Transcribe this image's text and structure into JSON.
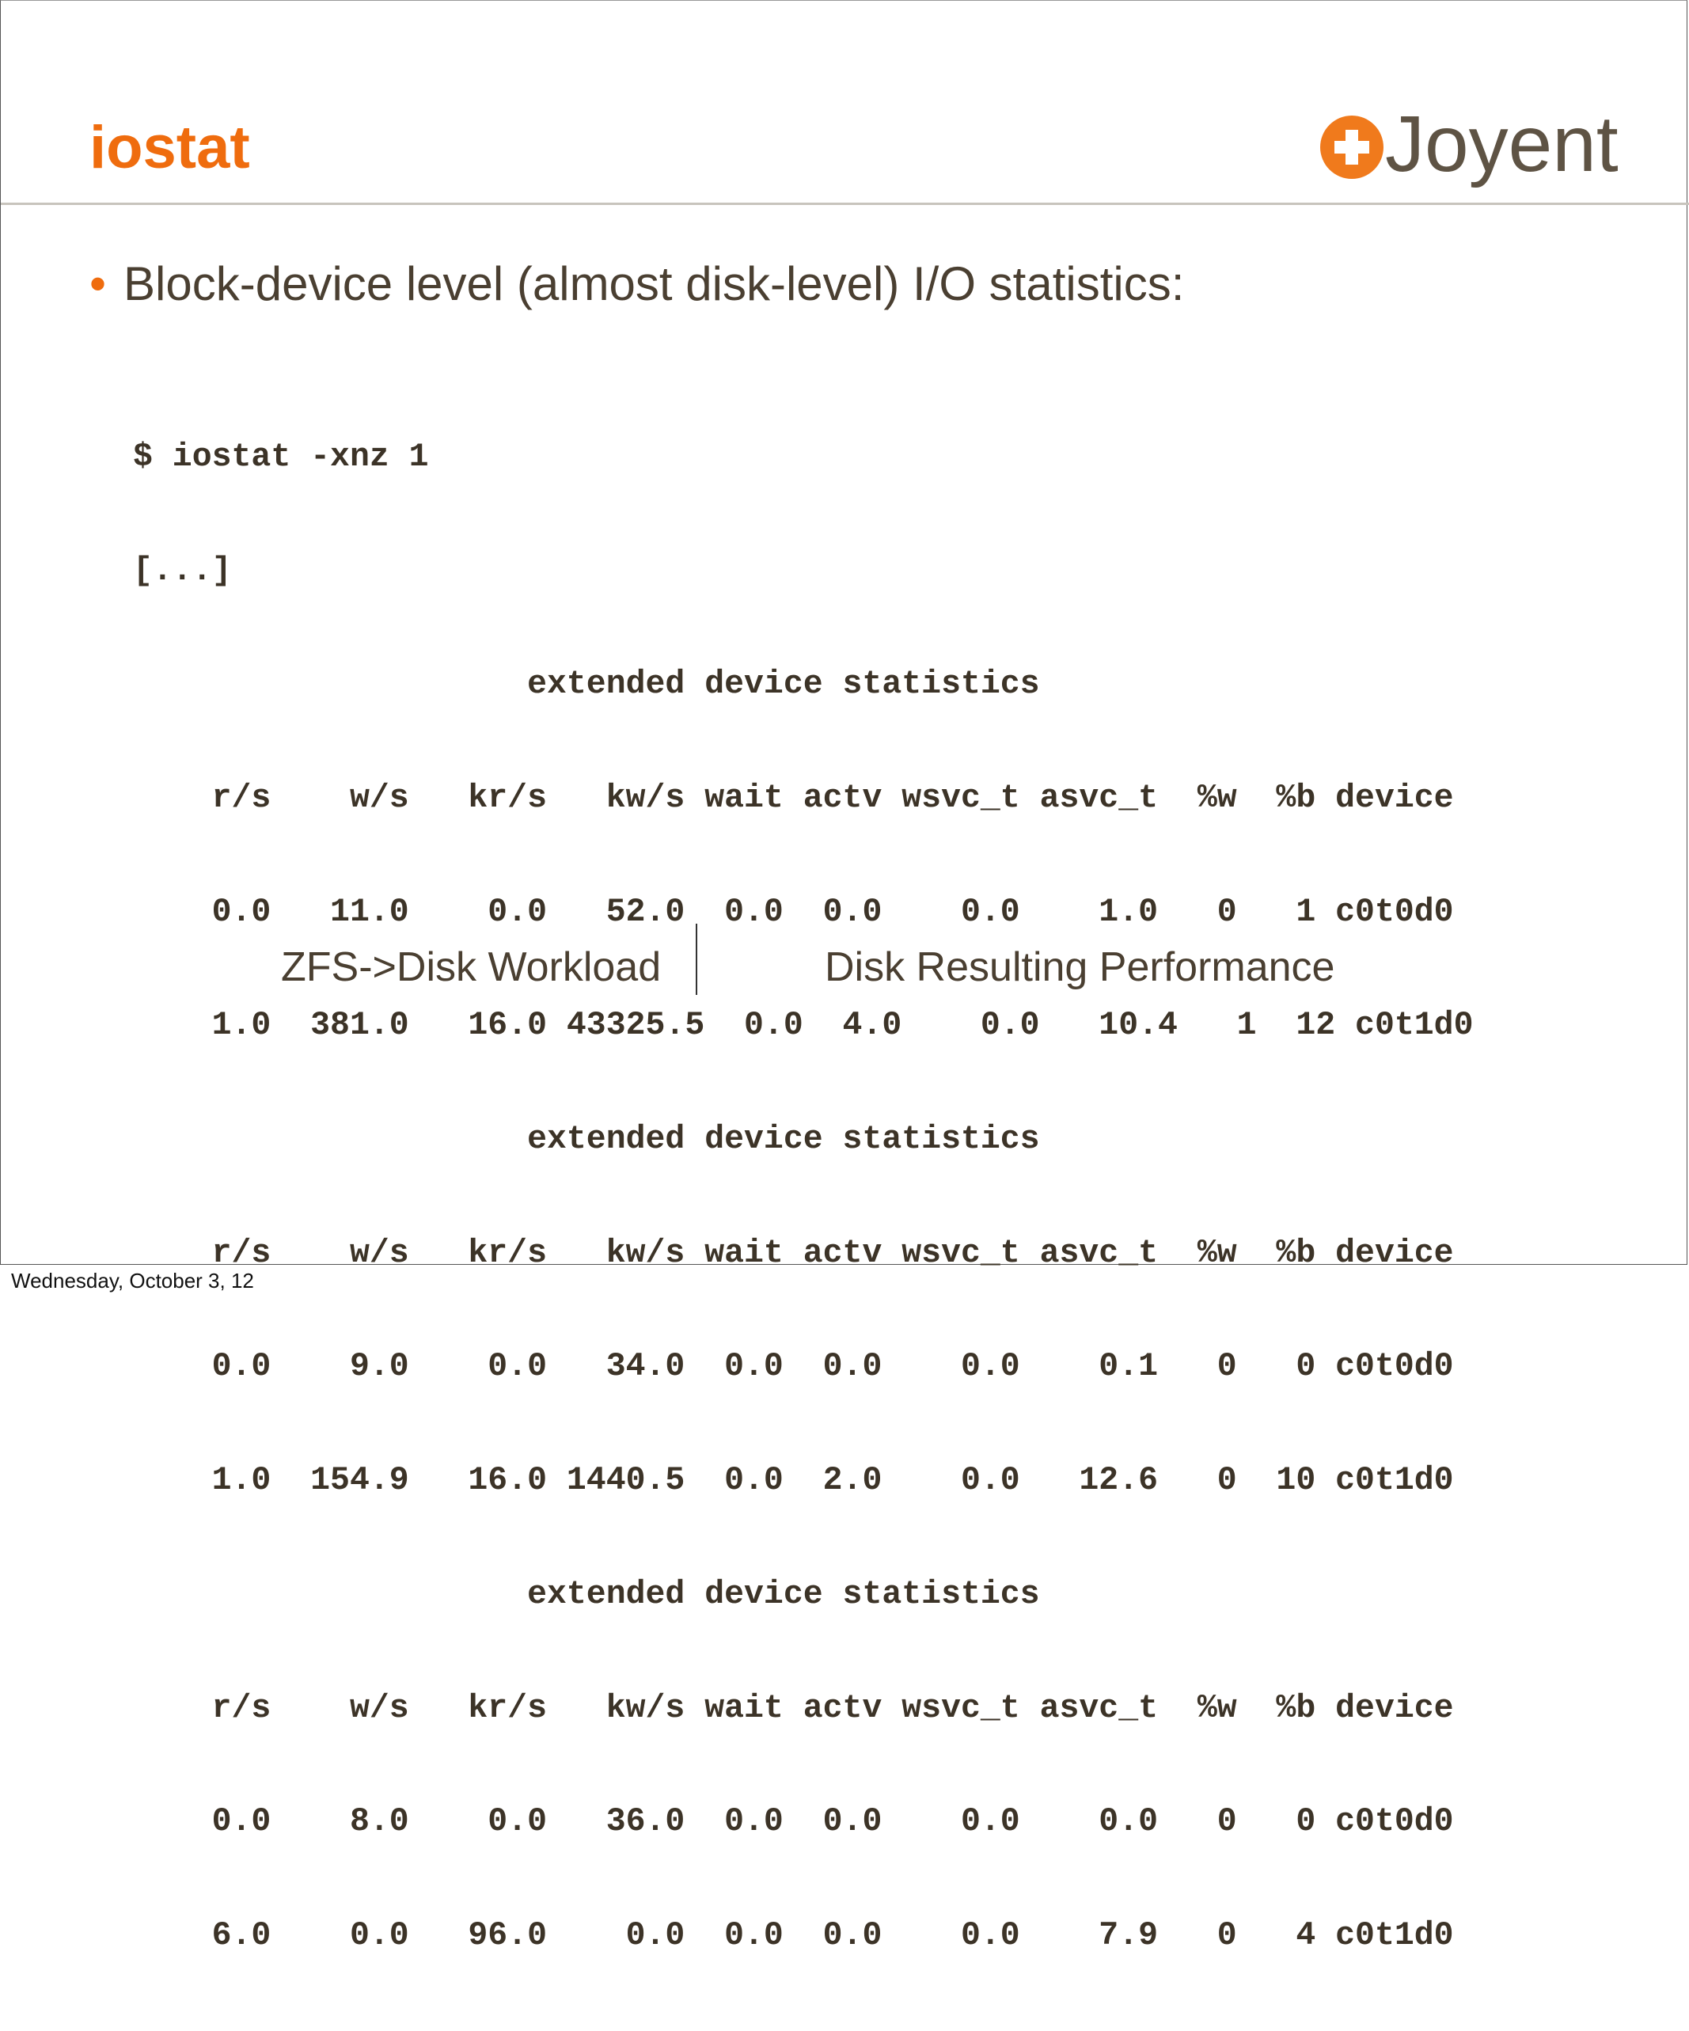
{
  "slide": {
    "title": "iostat",
    "logo": {
      "text": "Joyent",
      "icon": "plus-circle-icon",
      "accent": "#f07a1c"
    },
    "bullet": "Block-device level (almost disk-level) I/O statistics:",
    "terminal_lines": [
      "$ iostat -xnz 1",
      "[...]",
      "                    extended device statistics",
      "    r/s    w/s   kr/s   kw/s wait actv wsvc_t asvc_t  %w  %b device",
      "    0.0   11.0    0.0   52.0  0.0  0.0    0.0    1.0   0   1 c0t0d0",
      "    1.0  381.0   16.0 43325.5  0.0  4.0    0.0   10.4   1  12 c0t1d0",
      "                    extended device statistics",
      "    r/s    w/s   kr/s   kw/s wait actv wsvc_t asvc_t  %w  %b device",
      "    0.0    9.0    0.0   34.0  0.0  0.0    0.0    0.1   0   0 c0t0d0",
      "    1.0  154.9   16.0 1440.5  0.0  2.0    0.0   12.6   0  10 c0t1d0",
      "                    extended device statistics",
      "    r/s    w/s   kr/s   kw/s wait actv wsvc_t asvc_t  %w  %b device",
      "    0.0    8.0    0.0   36.0  0.0  0.0    0.0    0.0   0   0 c0t0d0",
      "    6.0    0.0   96.0    0.0  0.0  0.0    0.0    7.9   0   4 c0t1d0"
    ],
    "label_left": "ZFS->Disk Workload",
    "label_right": "Disk Resulting Performance",
    "accent_color": "#ef6c0e"
  },
  "footer": {
    "date": "Wednesday, October 3, 12"
  }
}
